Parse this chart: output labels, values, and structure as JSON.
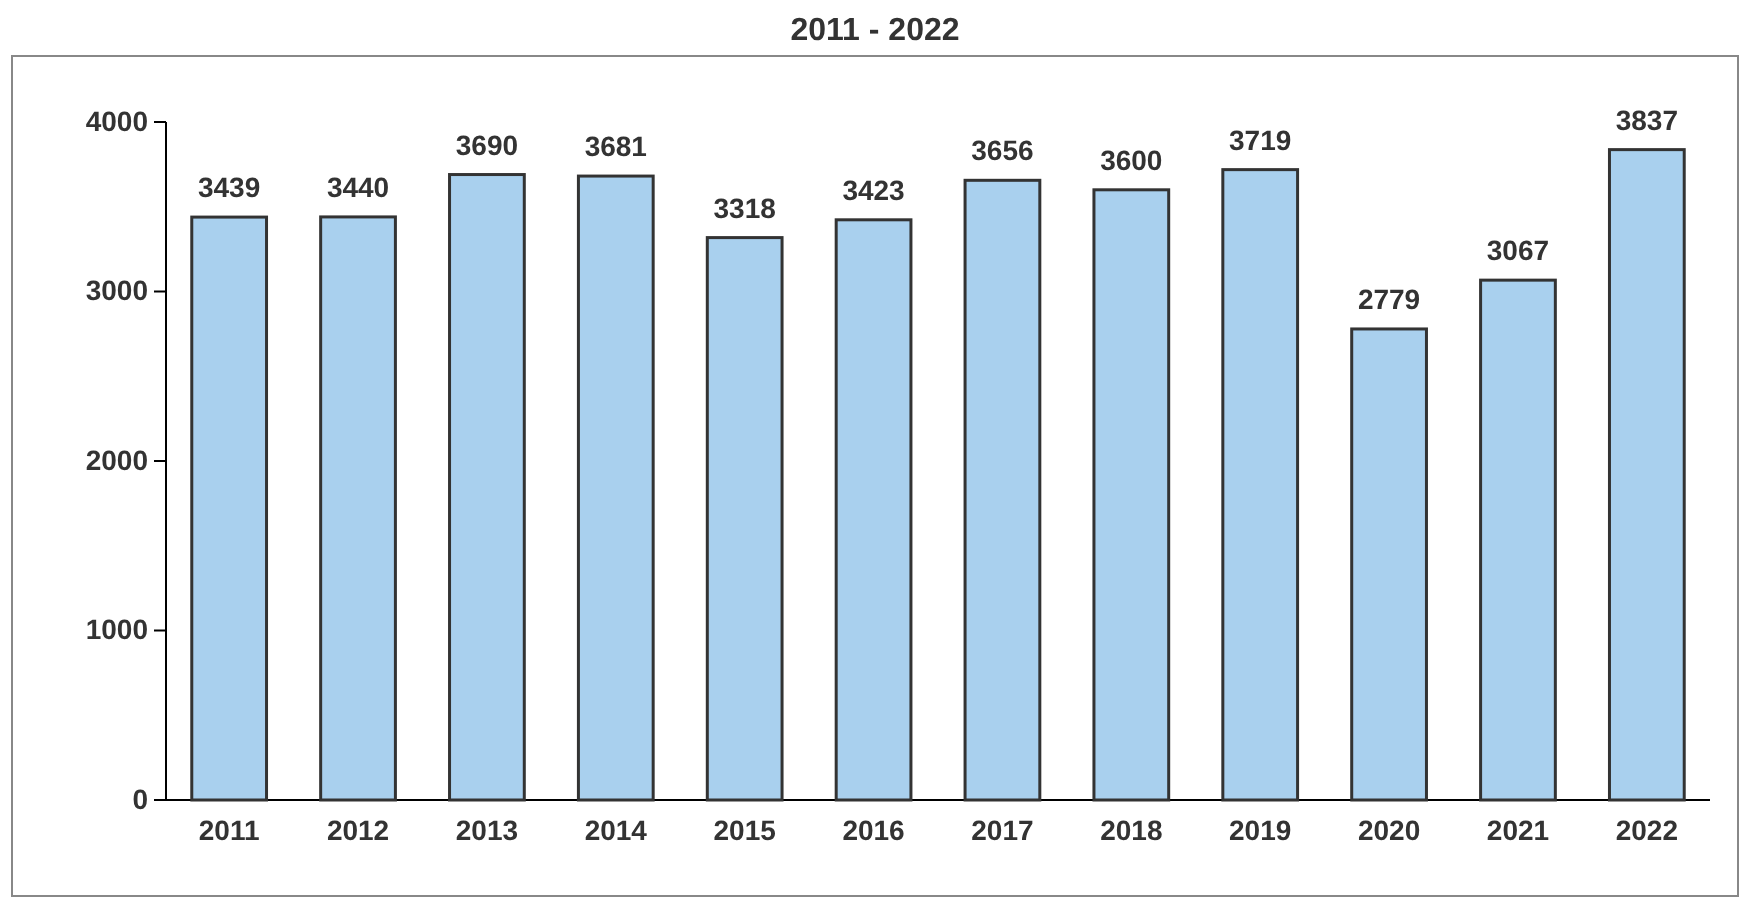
{
  "chart_data": {
    "type": "bar",
    "title": "2011 - 2022",
    "categories": [
      "2011",
      "2012",
      "2013",
      "2014",
      "2015",
      "2016",
      "2017",
      "2018",
      "2019",
      "2020",
      "2021",
      "2022"
    ],
    "values": [
      3439,
      3440,
      3690,
      3681,
      3318,
      3423,
      3656,
      3600,
      3719,
      2779,
      3067,
      3837
    ],
    "color": "#a9d0ee",
    "ylim": [
      0,
      4000
    ],
    "yticks": [
      0,
      1000,
      2000,
      3000,
      4000
    ],
    "data_labels": true,
    "grid": false
  }
}
